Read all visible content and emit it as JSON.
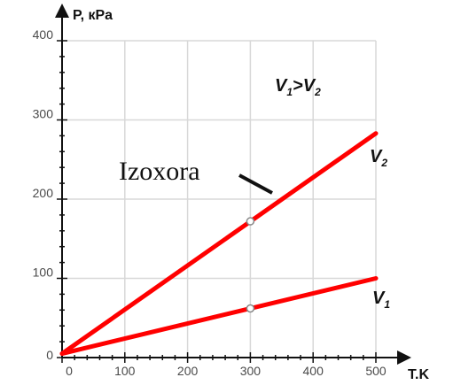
{
  "chart_data": {
    "type": "line",
    "xlabel": "T.K",
    "ylabel": "P, кPa",
    "xlim": [
      0,
      500
    ],
    "ylim": [
      0,
      400
    ],
    "x_ticks": [
      0,
      100,
      200,
      300,
      400,
      500
    ],
    "y_ticks": [
      0,
      100,
      200,
      300,
      400
    ],
    "grid": true,
    "series": [
      {
        "name": "V",
        "subscript": "2",
        "x": [
          0,
          500
        ],
        "y": [
          5,
          283
        ],
        "color": "#ff0000"
      },
      {
        "name": "V",
        "subscript": "1",
        "x": [
          0,
          500
        ],
        "y": [
          5,
          100
        ],
        "color": "#ff0000"
      }
    ],
    "markers": [
      {
        "x": 300,
        "y": 172
      },
      {
        "x": 300,
        "y": 62
      }
    ],
    "annotations": {
      "isochore": "Izoxora",
      "relation": {
        "v1": "V",
        "v1_sub": "1",
        "op": ">",
        "v2": "V",
        "v2_sub": "2"
      }
    }
  }
}
